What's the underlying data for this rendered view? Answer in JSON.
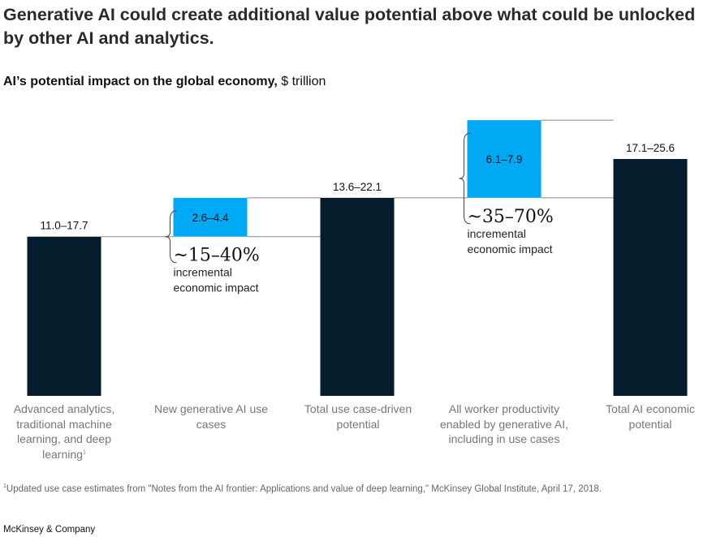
{
  "header": {
    "title": "Generative AI could create additional value potential above what could be unlocked by other AI and analytics.",
    "subtitle_bold": "AI’s potential impact on the global economy,",
    "subtitle_unit": "$ trillion"
  },
  "chart_data": {
    "type": "bar",
    "subtype": "waterfall",
    "categories": [
      "Advanced analytics, traditional machine learning, and deep learning",
      "New generative AI use cases",
      "Total use case-driven potential",
      "All worker productivity enabled by generative AI, including in use cases",
      "Total AI economic potential"
    ],
    "category_footnote_markers": [
      "1",
      "",
      "",
      "",
      ""
    ],
    "value_labels": [
      "11.0–17.7",
      "2.6–4.4",
      "13.6–22.1",
      "6.1–7.9",
      "17.1–25.6"
    ],
    "ranges": [
      [
        11.0,
        17.7
      ],
      [
        2.6,
        4.4
      ],
      [
        13.6,
        22.1
      ],
      [
        6.1,
        7.9
      ],
      [
        17.1,
        25.6
      ]
    ],
    "bar_kind": [
      "total",
      "increment",
      "total",
      "increment",
      "total"
    ],
    "annotations": [
      {
        "after_category": 1,
        "value": "~15–40%",
        "text_line1": "incremental",
        "text_line2": "economic impact"
      },
      {
        "after_category": 3,
        "value": "~35–70%",
        "text_line1": "incremental",
        "text_line2": "economic impact"
      }
    ],
    "colors": {
      "total": "#051c2c",
      "increment": "#00a9f4",
      "connector": "#888888"
    },
    "legend": "none",
    "grid": false
  },
  "footnote": {
    "marker": "1",
    "text": "Updated use case estimates from \"Notes from the AI frontier: Applications and value of deep learning,\" McKinsey Global Institute, April 17, 2018."
  },
  "brand": "McKinsey & Company"
}
